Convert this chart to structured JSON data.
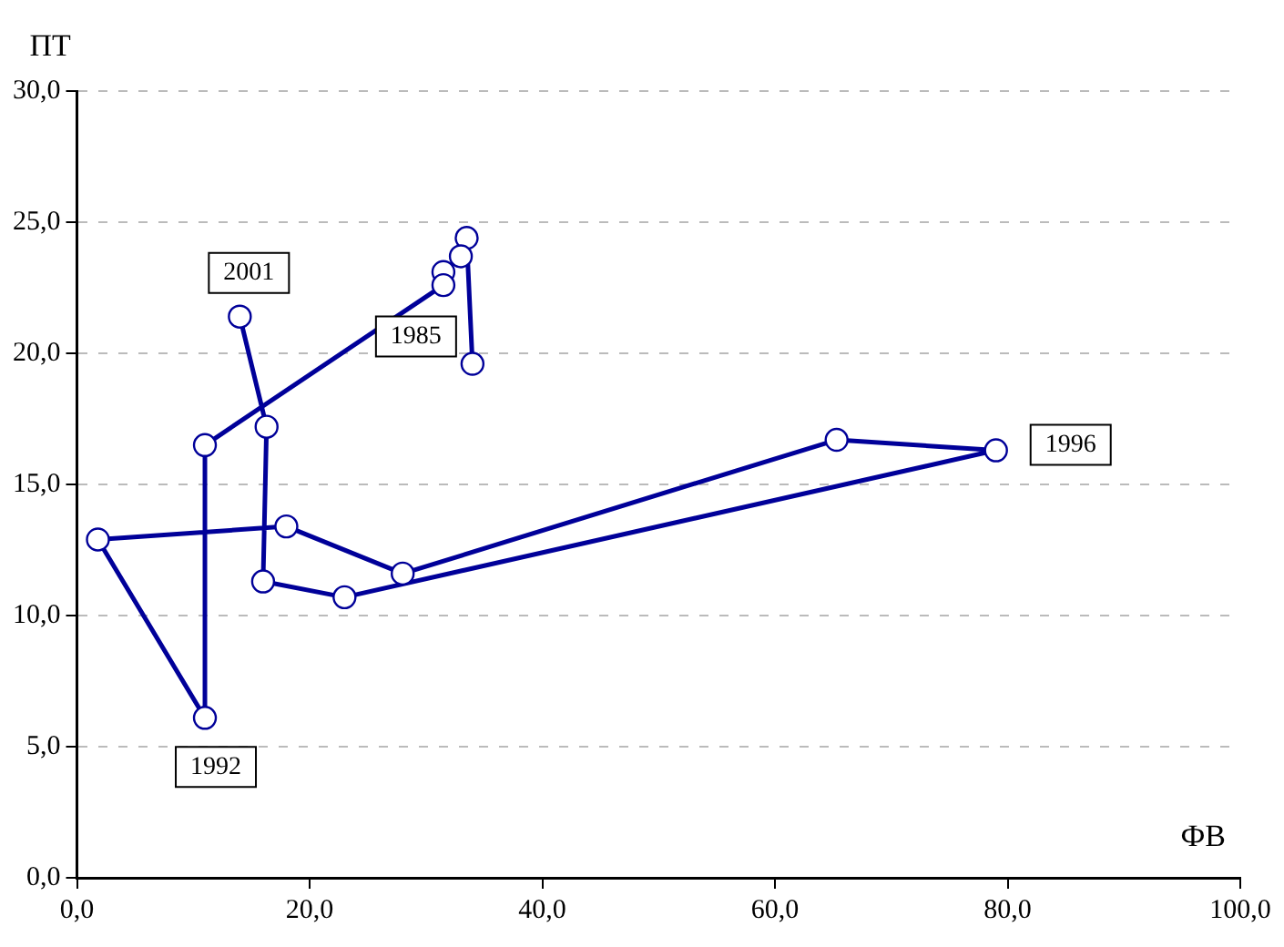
{
  "chart_data": {
    "type": "line",
    "xlabel": "ФВ",
    "ylabel": "ПТ",
    "xlim": [
      0,
      100
    ],
    "xticks": [
      {
        "value": 0,
        "label": "0,0"
      },
      {
        "value": 20,
        "label": "20,0"
      },
      {
        "value": 40,
        "label": "40,0"
      },
      {
        "value": 60,
        "label": "60,0"
      },
      {
        "value": 80,
        "label": "80,0"
      },
      {
        "value": 100,
        "label": "100,0"
      }
    ],
    "ylim": [
      0,
      30
    ],
    "yticks": [
      {
        "value": 0,
        "label": "0,0"
      },
      {
        "value": 5,
        "label": "5,0"
      },
      {
        "value": 10,
        "label": "10,0"
      },
      {
        "value": 15,
        "label": "15,0"
      },
      {
        "value": 20,
        "label": "20,0"
      },
      {
        "value": 25,
        "label": "25,0"
      },
      {
        "value": 30,
        "label": "30,0"
      }
    ],
    "grid": "y",
    "legend": false,
    "marker": "circle",
    "line_style": "solid",
    "series": [
      {
        "color": "#000099",
        "x": [
          34,
          33.5,
          33,
          31.5,
          31.5,
          11,
          11,
          1.8,
          18,
          28,
          65.3,
          79,
          23,
          16,
          16.3,
          14
        ],
        "values": [
          19.6,
          24.4,
          23.7,
          23.1,
          22.6,
          16.5,
          6.1,
          12.9,
          13.4,
          11.6,
          16.7,
          16.3,
          10.7,
          11.3,
          17.2,
          21.4
        ]
      }
    ],
    "annotations": [
      {
        "text": "2001",
        "x": 14,
        "y": 21.4
      },
      {
        "text": "1985",
        "x": 34,
        "y": 19.6
      },
      {
        "text": "1992",
        "x": 11,
        "y": 6.1
      },
      {
        "text": "1996",
        "x": 79,
        "y": 16.3
      }
    ]
  }
}
